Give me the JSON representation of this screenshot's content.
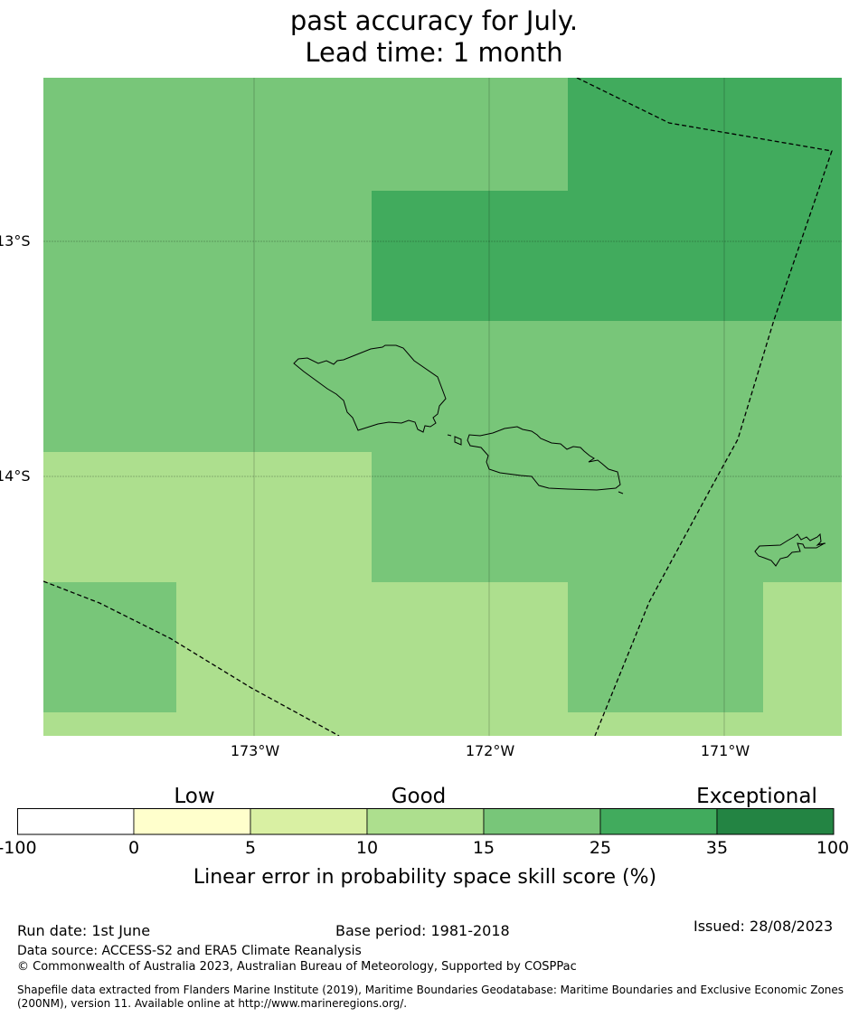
{
  "title": {
    "line1": "past accuracy for July.",
    "line2": "Lead time: 1 month"
  },
  "map": {
    "lat_labels": [
      "13°S",
      "14°S"
    ],
    "lon_labels": [
      "173°W",
      "172°W",
      "171°W"
    ],
    "skill_colors": {
      "10-15": "#addf8e",
      "15-25": "#78c679",
      "25-35": "#41ab5d"
    }
  },
  "colorbar": {
    "categories": [
      "Low",
      "Good",
      "Exceptional"
    ],
    "ticks": [
      "-100",
      "0",
      "5",
      "10",
      "15",
      "25",
      "35",
      "100"
    ],
    "colors": [
      "#ffffff",
      "#ffffcc",
      "#d9f0a3",
      "#addf8e",
      "#78c679",
      "#41ab5d",
      "#238443"
    ],
    "label": "Linear error in probability space skill score (%)"
  },
  "footer": {
    "run_date": "Run date: 1st June",
    "base_period": "Base period: 1981-2018",
    "issued": "Issued: 28/08/2023",
    "data_source": "Data source: ACCESS-S2 and ERA5 Climate Reanalysis",
    "copyright": "© Commonwealth of Australia 2023, Australian Bureau of Meteorology, Supported by COSPPac",
    "shapefile_line1": "Shapefile data extracted from Flanders Marine Institute (2019), Maritime Boundaries Geodatabase: Maritime Boundaries and Exclusive Economic Zones",
    "shapefile_line2": "(200NM), version 11. Available online at http://www.marineregions.org/."
  }
}
